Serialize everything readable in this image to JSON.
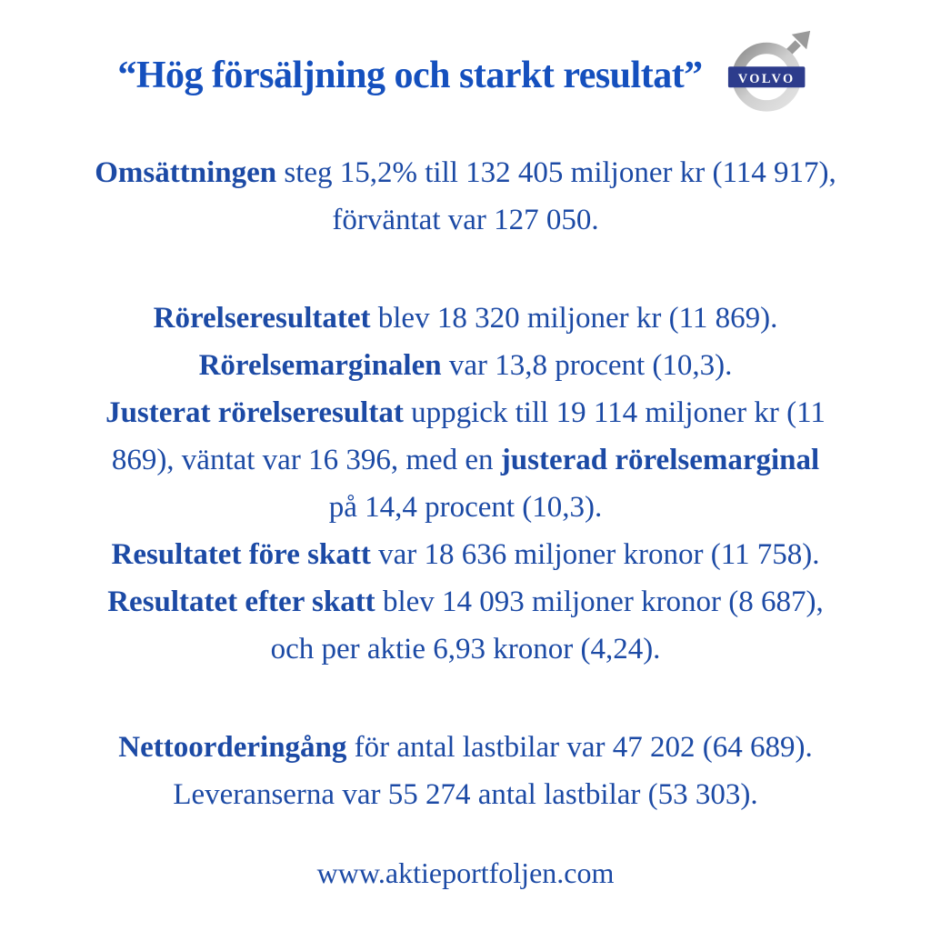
{
  "colors": {
    "title_color": "#1550be",
    "body_color": "#1c4aa5",
    "logo_banner": "#2d3c8c",
    "logo_metal": "#9a9a9a"
  },
  "header": {
    "title": "“Hög försäljning och starkt resultat”",
    "logo_text": "VOLVO"
  },
  "body": {
    "paragraphs": [
      {
        "lines": [
          [
            {
              "t": "Omsättningen",
              "b": true
            },
            {
              "t": " steg 15,2% till 132 405 miljoner kr (114 917),",
              "b": false
            }
          ],
          [
            {
              "t": "förväntat var 127 050.",
              "b": false
            }
          ]
        ]
      },
      {
        "lines": [
          [
            {
              "t": "Rörelseresultatet",
              "b": true
            },
            {
              "t": " blev 18 320 miljoner kr (11 869).",
              "b": false
            }
          ],
          [
            {
              "t": "Rörelsemarginalen",
              "b": true
            },
            {
              "t": " var 13,8 procent (10,3).",
              "b": false
            }
          ],
          [
            {
              "t": "Justerat rörelseresultat",
              "b": true
            },
            {
              "t": " uppgick till 19 114 miljoner kr (11",
              "b": false
            }
          ],
          [
            {
              "t": "869), väntat var 16 396, med en ",
              "b": false
            },
            {
              "t": "justerad rörelsemarginal",
              "b": true
            }
          ],
          [
            {
              "t": "på 14,4 procent (10,3).",
              "b": false
            }
          ],
          [
            {
              "t": "Resultatet före skatt",
              "b": true
            },
            {
              "t": " var 18 636 miljoner kronor (11 758).",
              "b": false
            }
          ],
          [
            {
              "t": "Resultatet efter skatt",
              "b": true
            },
            {
              "t": " blev 14 093 miljoner kronor (8 687),",
              "b": false
            }
          ],
          [
            {
              "t": "och per aktie 6,93 kronor (4,24).",
              "b": false
            }
          ]
        ]
      },
      {
        "lines": [
          [
            {
              "t": "Nettoorderingång",
              "b": true
            },
            {
              "t": " för antal lastbilar var 47 202 (64 689).",
              "b": false
            }
          ],
          [
            {
              "t": "Leveranserna var 55 274 antal lastbilar (53 303).",
              "b": false
            }
          ]
        ]
      }
    ]
  },
  "footer": {
    "url": "www.aktieportfoljen.com"
  }
}
